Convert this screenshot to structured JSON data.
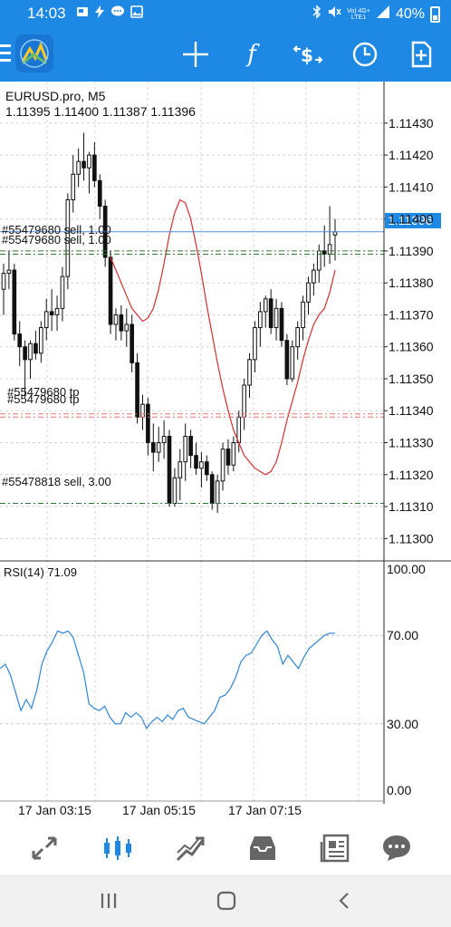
{
  "status_bar": {
    "time": "14:03",
    "net_top": "Vo) 4G+",
    "net_bottom": "LTE1",
    "battery": "40%",
    "icons": [
      "gallery-icon",
      "bolt-icon",
      "chat-icon",
      "image-icon",
      "bluetooth-icon",
      "mute-icon",
      "signal-icon",
      "battery-icon"
    ]
  },
  "toolbar": {
    "function_label": "f",
    "icons": [
      "menu-icon",
      "app-logo",
      "crosshair-icon",
      "indicators-icon",
      "trade-icon",
      "timeframe-clock-icon",
      "new-order-icon"
    ]
  },
  "chart": {
    "symbol_label": "EURUSD.pro, M5",
    "ohlc_label": "1.11395 1.11400 1.11387 1.11396",
    "current_price_label": "1.11396",
    "price_axis_labels": [
      "1.11430",
      "1.11420",
      "1.11410",
      "1.11400",
      "1.11390",
      "1.11380",
      "1.11370",
      "1.11360",
      "1.11350",
      "1.11340",
      "1.11330",
      "1.11320",
      "1.11310",
      "1.11300"
    ],
    "order_labels": {
      "sell_1": "#55479680 sell, 1.00",
      "sell_1_overlap": "#55479680 sell, 1.00",
      "tp": "#55479680 tp",
      "tp_overlap": "#55479680 tp",
      "sell_2": "#55478818 sell, 3.00"
    },
    "rsi_label": "RSI(14) 71.09",
    "rsi_axis_labels": [
      "100.00",
      "70.00",
      "30.00",
      "0.00"
    ],
    "time_labels": [
      "17 Jan 03:15",
      "17 Jan 05:15",
      "17 Jan 07:15"
    ],
    "colors": {
      "current_price": "#4a90e2",
      "order_green": "#2e7d32",
      "tp_red": "#e57373",
      "ma_line": "#d32f2f",
      "rsi_line": "#2f86d6",
      "accent": "#1e88e5"
    }
  },
  "chart_data": {
    "type": "candlestick",
    "ohlc_display": "1.11395 1.11400 1.11387 1.11396",
    "price_range": [
      1.11293,
      1.11443
    ],
    "current_price": 1.11396,
    "order_levels": [
      1.11396,
      1.1139,
      1.11389,
      1.11339,
      1.11338,
      1.11311
    ],
    "candles": [
      [
        1.11378,
        1.11386,
        1.1137,
        1.11383
      ],
      [
        1.11383,
        1.1139,
        1.11378,
        1.11384
      ],
      [
        1.11384,
        1.11386,
        1.11362,
        1.11364
      ],
      [
        1.11364,
        1.11368,
        1.11354,
        1.1136
      ],
      [
        1.1136,
        1.11362,
        1.11344,
        1.11356
      ],
      [
        1.11356,
        1.11362,
        1.1135,
        1.11361
      ],
      [
        1.11361,
        1.11365,
        1.11356,
        1.11358
      ],
      [
        1.11358,
        1.11368,
        1.11355,
        1.11366
      ],
      [
        1.11366,
        1.11375,
        1.11362,
        1.11371
      ],
      [
        1.11371,
        1.11378,
        1.11365,
        1.1137
      ],
      [
        1.1137,
        1.11376,
        1.11365,
        1.11372
      ],
      [
        1.11372,
        1.11385,
        1.11368,
        1.11382
      ],
      [
        1.11382,
        1.11408,
        1.11378,
        1.11406
      ],
      [
        1.11406,
        1.1142,
        1.11402,
        1.11414
      ],
      [
        1.11414,
        1.11422,
        1.1141,
        1.11418
      ],
      [
        1.11418,
        1.11427,
        1.11412,
        1.11416
      ],
      [
        1.11416,
        1.11421,
        1.11408,
        1.1142
      ],
      [
        1.1142,
        1.11424,
        1.1141,
        1.11412
      ],
      [
        1.11412,
        1.11414,
        1.114,
        1.11404
      ],
      [
        1.11404,
        1.11406,
        1.11385,
        1.11388
      ],
      [
        1.11388,
        1.1139,
        1.11364,
        1.11367
      ],
      [
        1.11367,
        1.11372,
        1.11362,
        1.1137
      ],
      [
        1.1137,
        1.11373,
        1.11362,
        1.11365
      ],
      [
        1.11365,
        1.11372,
        1.1136,
        1.11367
      ],
      [
        1.11367,
        1.1137,
        1.11352,
        1.11355
      ],
      [
        1.11355,
        1.11358,
        1.11336,
        1.11338
      ],
      [
        1.11338,
        1.11345,
        1.11334,
        1.11342
      ],
      [
        1.11342,
        1.11344,
        1.11326,
        1.1133
      ],
      [
        1.1133,
        1.11336,
        1.11321,
        1.11327
      ],
      [
        1.11327,
        1.11335,
        1.11324,
        1.1133
      ],
      [
        1.1133,
        1.11337,
        1.11325,
        1.11332
      ],
      [
        1.11332,
        1.11334,
        1.1131,
        1.11311
      ],
      [
        1.11311,
        1.11322,
        1.1131,
        1.11319
      ],
      [
        1.11319,
        1.11328,
        1.11312,
        1.11324
      ],
      [
        1.11324,
        1.11336,
        1.11318,
        1.11332
      ],
      [
        1.11332,
        1.11334,
        1.11322,
        1.11326
      ],
      [
        1.11326,
        1.1133,
        1.1132,
        1.11322
      ],
      [
        1.11322,
        1.11327,
        1.11316,
        1.11324
      ],
      [
        1.11324,
        1.11326,
        1.11318,
        1.1132
      ],
      [
        1.1132,
        1.11321,
        1.11309,
        1.11311
      ],
      [
        1.11311,
        1.1132,
        1.11308,
        1.11318
      ],
      [
        1.11318,
        1.1133,
        1.11315,
        1.11328
      ],
      [
        1.11328,
        1.11331,
        1.1132,
        1.11323
      ],
      [
        1.11323,
        1.11332,
        1.11321,
        1.1133
      ],
      [
        1.1133,
        1.1134,
        1.11327,
        1.11338
      ],
      [
        1.11338,
        1.1135,
        1.11334,
        1.11348
      ],
      [
        1.11348,
        1.11358,
        1.11344,
        1.11356
      ],
      [
        1.11356,
        1.11368,
        1.11352,
        1.11366
      ],
      [
        1.11366,
        1.11374,
        1.1136,
        1.11371
      ],
      [
        1.11371,
        1.11376,
        1.11366,
        1.11375
      ],
      [
        1.11375,
        1.11378,
        1.11364,
        1.11366
      ],
      [
        1.11366,
        1.11375,
        1.11362,
        1.11372
      ],
      [
        1.11372,
        1.11374,
        1.1136,
        1.11362
      ],
      [
        1.11362,
        1.11364,
        1.11348,
        1.1135
      ],
      [
        1.1135,
        1.11362,
        1.11349,
        1.1136
      ],
      [
        1.1136,
        1.11368,
        1.11356,
        1.11366
      ],
      [
        1.11366,
        1.11376,
        1.11362,
        1.11374
      ],
      [
        1.11374,
        1.11382,
        1.1137,
        1.1138
      ],
      [
        1.1138,
        1.11386,
        1.11376,
        1.11384
      ],
      [
        1.11384,
        1.11392,
        1.1138,
        1.1139
      ],
      [
        1.1139,
        1.11398,
        1.11385,
        1.11389
      ],
      [
        1.11389,
        1.11404,
        1.11386,
        1.11392
      ],
      [
        1.11395,
        1.114,
        1.11387,
        1.11396
      ]
    ],
    "ma": [
      1.11388,
      1.11384,
      1.1138,
      1.11376,
      1.11372,
      1.1137,
      1.11368,
      1.11369,
      1.11372,
      1.11378,
      1.11386,
      1.11395,
      1.11402,
      1.11406,
      1.11405,
      1.114,
      1.11392,
      1.11383,
      1.11373,
      1.11364,
      1.11355,
      1.11347,
      1.1134,
      1.11334,
      1.1133,
      1.11326,
      1.11324,
      1.11322,
      1.11321,
      1.1132,
      1.11321,
      1.11324,
      1.1133,
      1.11337,
      1.11343,
      1.11349,
      1.11356,
      1.11362,
      1.11367,
      1.1137,
      1.11372,
      1.11377,
      1.11384
    ],
    "rsi_range": [
      0,
      100
    ],
    "rsi_levels": [
      70,
      30
    ],
    "rsi": [
      55,
      57,
      52,
      44,
      36,
      41,
      37,
      45,
      57,
      63,
      67,
      72,
      71,
      72,
      69,
      61,
      53,
      39,
      37,
      36,
      38,
      33,
      30,
      30,
      35,
      33,
      35,
      33,
      28,
      31,
      33,
      31,
      34,
      32,
      36,
      37,
      33,
      32,
      31,
      30,
      33,
      36,
      42,
      43,
      46,
      51,
      58,
      61,
      62,
      66,
      70,
      72,
      68,
      65,
      57,
      61,
      58,
      55,
      60,
      64,
      66,
      68,
      70,
      71,
      71
    ]
  },
  "bottom_nav": {
    "items": [
      "quotes-icon",
      "chart-icon",
      "trade-icon",
      "history-icon",
      "news-icon",
      "messages-icon"
    ],
    "active_index": 1
  },
  "system_nav": {
    "items": [
      "recents-icon",
      "home-icon",
      "back-icon"
    ]
  }
}
